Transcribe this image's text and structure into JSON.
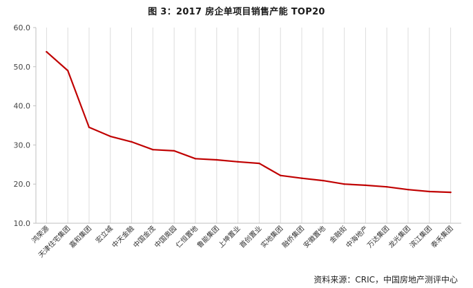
{
  "title": "图 3：2017 房企单项目销售产能 TOP20",
  "source": "资料来源：CRIC，中国房地产测评中心",
  "chart_data": {
    "type": "line",
    "title": "图 3：2017 房企单项目销售产能 TOP20",
    "xlabel": "",
    "ylabel": "",
    "ylim": [
      10,
      60
    ],
    "yticks": [
      10,
      20,
      30,
      40,
      50,
      60
    ],
    "ytick_labels": [
      "10.0",
      "20.0",
      "30.0",
      "40.0",
      "50.0",
      "60.0"
    ],
    "grid": "vertical gridlines at categories",
    "legend": "none",
    "color": "#c00000",
    "categories": [
      "鸿荣源",
      "天津住宅集团",
      "嘉和集团",
      "宏立城",
      "中天金融",
      "中国金茂",
      "中国奥园",
      "仁恒置地",
      "鲁能集团",
      "上坤置业",
      "首创置业",
      "实地集团",
      "融侨集团",
      "安徽置地",
      "金融街",
      "中海地产",
      "万达集团",
      "龙光集团",
      "滨江集团",
      "泰禾集团"
    ],
    "series": [
      {
        "values": [
          53.8,
          49.0,
          34.5,
          32.2,
          30.8,
          28.8,
          28.5,
          26.5,
          26.2,
          25.7,
          25.3,
          22.2,
          21.5,
          20.9,
          20.0,
          19.7,
          19.3,
          18.6,
          18.1,
          17.9
        ]
      }
    ]
  }
}
